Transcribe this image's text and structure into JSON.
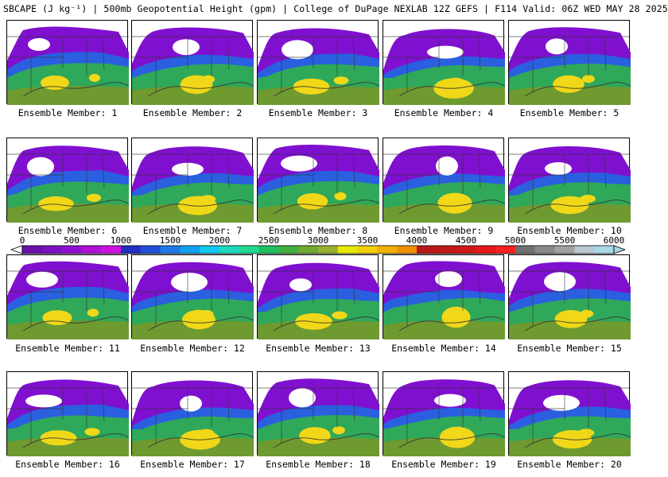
{
  "header": {
    "title": "SBCAPE (J kg⁻¹) | 500mb Geopotential Height (gpm) | College of DuPage NEXLAB 12Z GEFS | F114 Valid: 06Z WED MAY 28 2025"
  },
  "panels": [
    {
      "label": "Ensemble Member: 1"
    },
    {
      "label": "Ensemble Member: 2"
    },
    {
      "label": "Ensemble Member: 3"
    },
    {
      "label": "Ensemble Member: 4"
    },
    {
      "label": "Ensemble Member: 5"
    },
    {
      "label": "Ensemble Member: 6"
    },
    {
      "label": "Ensemble Member: 7"
    },
    {
      "label": "Ensemble Member: 8"
    },
    {
      "label": "Ensemble Member: 9"
    },
    {
      "label": "Ensemble Member: 10"
    },
    {
      "label": "Ensemble Member: 11"
    },
    {
      "label": "Ensemble Member: 12"
    },
    {
      "label": "Ensemble Member: 13"
    },
    {
      "label": "Ensemble Member: 14"
    },
    {
      "label": "Ensemble Member: 15"
    },
    {
      "label": "Ensemble Member: 16"
    },
    {
      "label": "Ensemble Member: 17"
    },
    {
      "label": "Ensemble Member: 18"
    },
    {
      "label": "Ensemble Member: 19"
    },
    {
      "label": "Ensemble Member: 20"
    }
  ],
  "colorbar": {
    "ticks": [
      "0",
      "500",
      "1000",
      "1500",
      "2000",
      "2500",
      "3000",
      "3500",
      "4000",
      "4500",
      "5000",
      "5500",
      "6000"
    ],
    "colors": [
      "#6a0fa8",
      "#7a12c0",
      "#9010d0",
      "#b010d8",
      "#d010e0",
      "#2030c0",
      "#2050d8",
      "#2078e8",
      "#10a0f0",
      "#10c8f0",
      "#20d8c0",
      "#20d890",
      "#20c060",
      "#40b040",
      "#70a830",
      "#98b030",
      "#e8e800",
      "#f0d000",
      "#f0b000",
      "#f09000",
      "#b81818",
      "#c01818",
      "#d01818",
      "#e81818",
      "#f82020",
      "#707070",
      "#888888",
      "#a0a0a0",
      "#b8c8d0",
      "#a8d8e8"
    ]
  },
  "colors": {
    "low": "#8010d0",
    "mid_blue": "#2a5fe0",
    "green": "#2fa85a",
    "olive": "#6e9a30",
    "yellow": "#f0d818",
    "background": "#ffffff"
  }
}
